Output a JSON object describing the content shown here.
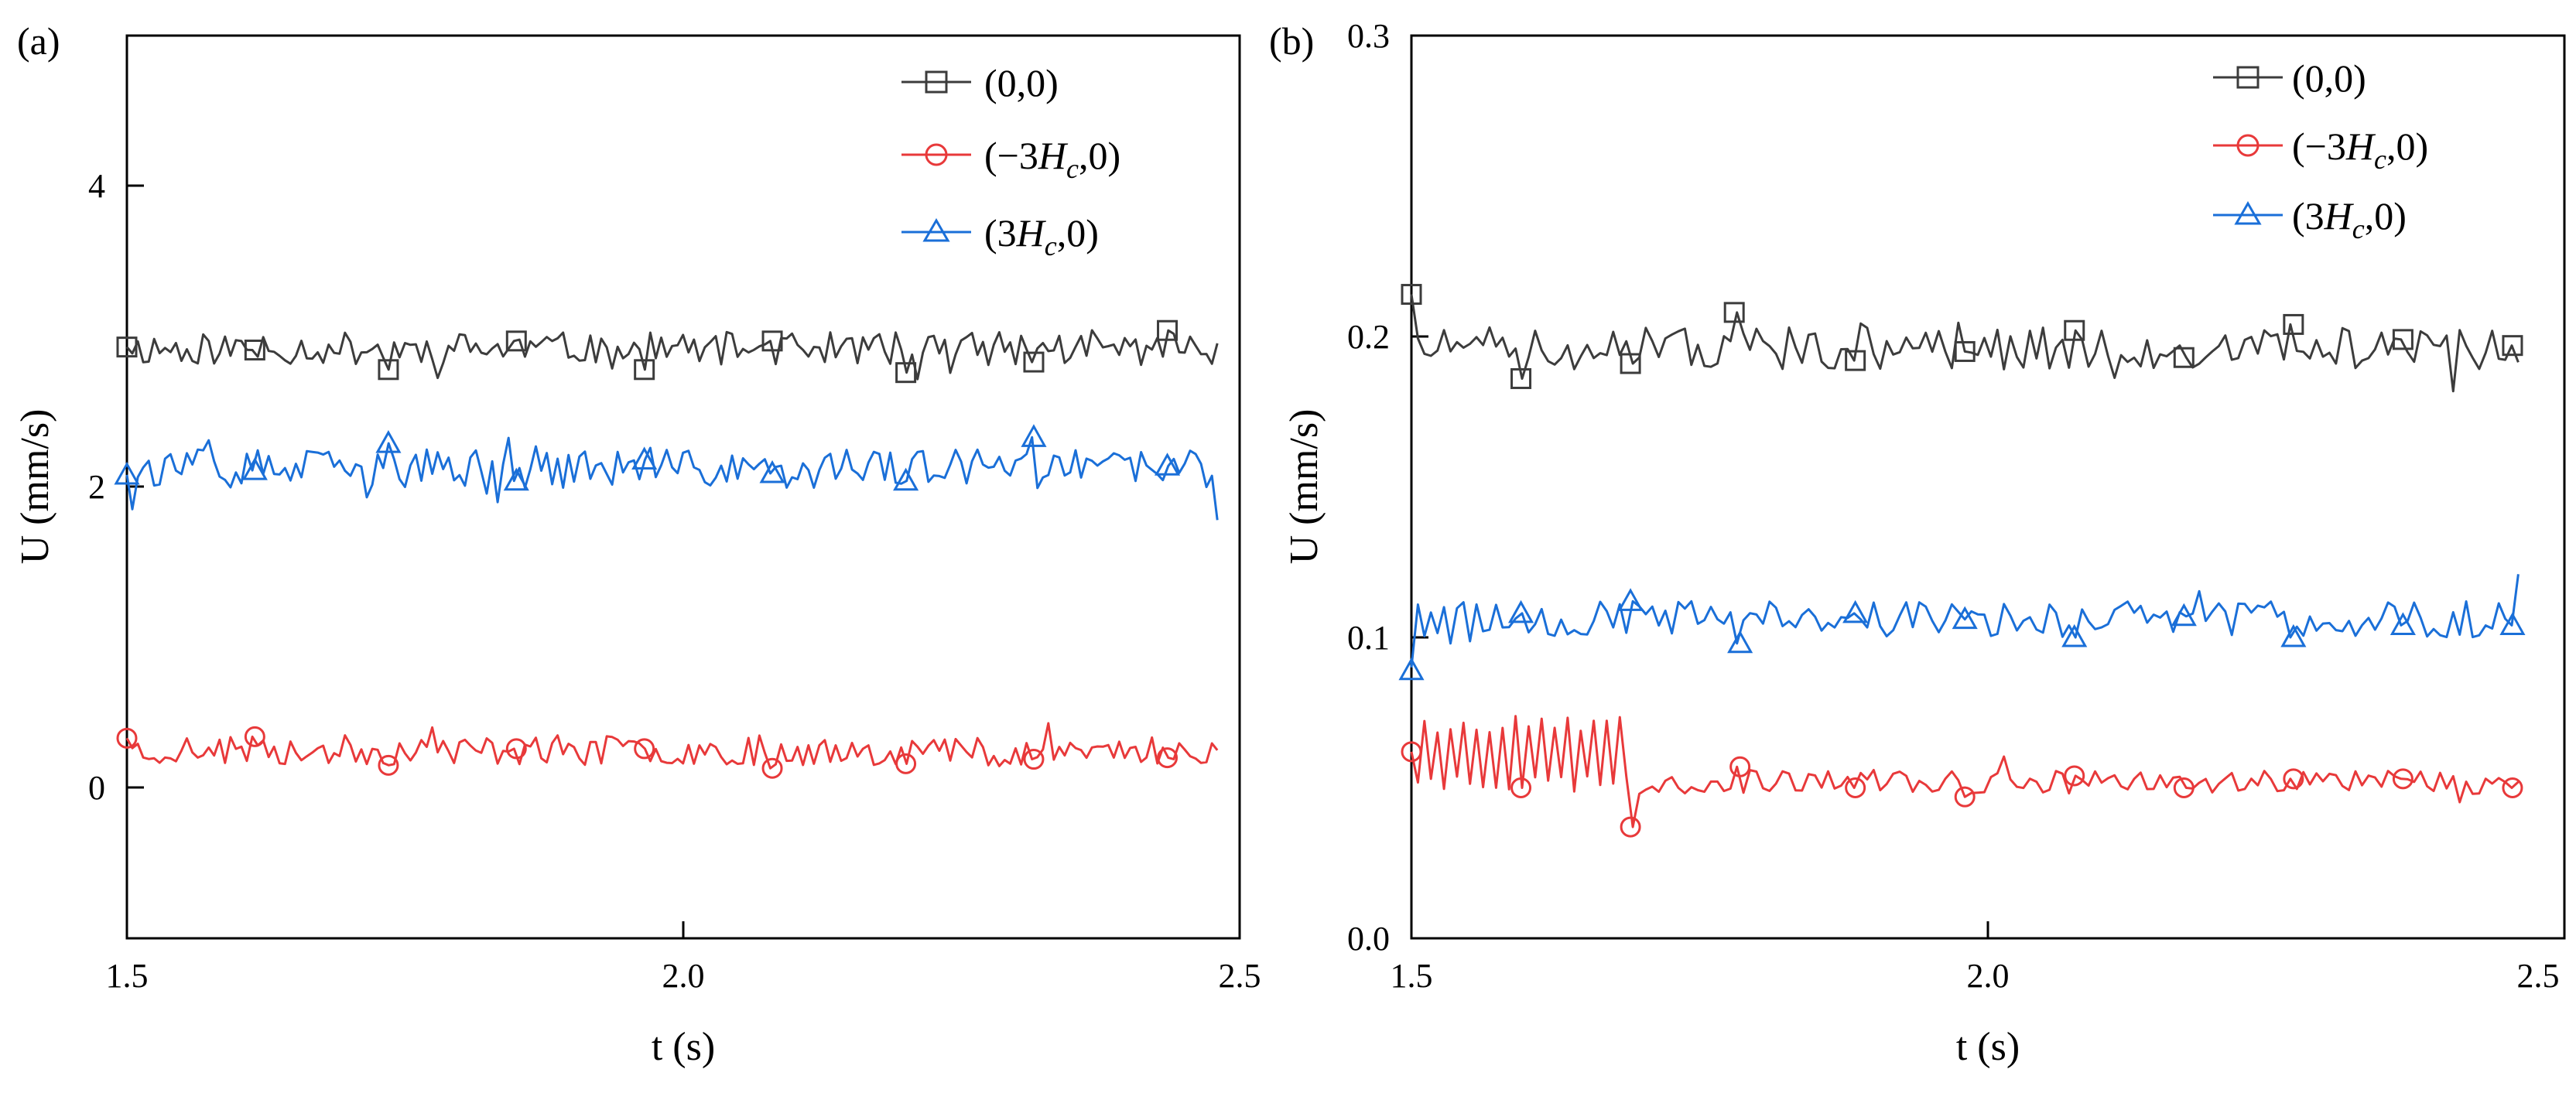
{
  "figure": {
    "panels": [
      "(a)",
      "(b)"
    ]
  },
  "chart_data": [
    {
      "panel": "(a)",
      "type": "line",
      "xlabel": "t (s)",
      "ylabel": "U (mm/s)",
      "xlim": [
        1.5,
        2.5
      ],
      "ylim": [
        -1,
        5
      ],
      "xticks": [
        1.5,
        2.0,
        2.5
      ],
      "xtick_labels": [
        "1.5",
        "2.0",
        "2.5"
      ],
      "yticks": [
        0,
        2,
        4
      ],
      "ytick_labels": [
        "0",
        "2",
        "4"
      ],
      "legend_position": "top-right",
      "series": [
        {
          "name": "(0,0)",
          "label_parts": [
            "(0,0)",
            "",
            "",
            ""
          ],
          "color": "#3c3c3c",
          "marker": "square",
          "mean": 2.92,
          "amplitude": 0.11,
          "seed": 11,
          "x_start": 1.5,
          "x_end": 2.48,
          "markers": [
            [
              1.5,
              2.93
            ],
            [
              1.615,
              2.91
            ],
            [
              1.735,
              2.78
            ],
            [
              1.85,
              2.97
            ],
            [
              1.965,
              2.78
            ],
            [
              2.08,
              2.97
            ],
            [
              2.2,
              2.76
            ],
            [
              2.315,
              2.83
            ],
            [
              2.435,
              3.04
            ]
          ]
        },
        {
          "name": "(-3Hc,0)",
          "label_parts": [
            "(−3",
            "H",
            "c",
            ",0)"
          ],
          "color": "#e8393a",
          "marker": "circle",
          "mean": 0.25,
          "amplitude": 0.1,
          "seed": 23,
          "x_start": 1.5,
          "x_end": 2.48,
          "markers": [
            [
              1.5,
              0.33
            ],
            [
              1.615,
              0.34
            ],
            [
              1.735,
              0.15
            ],
            [
              1.85,
              0.26
            ],
            [
              1.965,
              0.26
            ],
            [
              2.08,
              0.13
            ],
            [
              2.2,
              0.16
            ],
            [
              2.315,
              0.19
            ],
            [
              2.435,
              0.2
            ]
          ]
        },
        {
          "name": "(3Hc,0)",
          "label_parts": [
            "(3",
            "H",
            "c",
            ",0)"
          ],
          "color": "#1a6fd8",
          "marker": "triangle",
          "mean": 2.12,
          "amplitude": 0.13,
          "seed": 37,
          "x_start": 1.5,
          "x_end": 2.48,
          "end_value": 1.78,
          "markers": [
            [
              1.5,
              2.08
            ],
            [
              1.615,
              2.11
            ],
            [
              1.735,
              2.29
            ],
            [
              1.85,
              2.04
            ],
            [
              1.965,
              2.18
            ],
            [
              2.08,
              2.09
            ],
            [
              2.2,
              2.04
            ],
            [
              2.315,
              2.33
            ],
            [
              2.435,
              2.14
            ]
          ]
        }
      ]
    },
    {
      "panel": "(b)",
      "type": "line",
      "xlabel": "t (s)",
      "ylabel": "U (mm/s)",
      "xlim": [
        1.5,
        2.5
      ],
      "ylim": [
        0.0,
        0.3
      ],
      "xticks": [
        1.5,
        2.0,
        2.5
      ],
      "xtick_labels": [
        "1.5",
        "2.0",
        "2.5"
      ],
      "yticks": [
        0.0,
        0.1,
        0.2,
        0.3
      ],
      "ytick_labels": [
        "0.0",
        "0.1",
        "0.2",
        "0.3"
      ],
      "legend_position": "top-right",
      "series": [
        {
          "name": "(0,0)",
          "label_parts": [
            "(0,0)",
            "",
            "",
            ""
          ],
          "color": "#3c3c3c",
          "marker": "square",
          "mean": 0.196,
          "amplitude": 0.007,
          "seed": 51,
          "x_start": 1.5,
          "x_end": 2.46,
          "markers": [
            [
              1.5,
              0.214
            ],
            [
              1.595,
              0.186
            ],
            [
              1.69,
              0.191
            ],
            [
              1.78,
              0.208
            ],
            [
              1.885,
              0.192
            ],
            [
              1.98,
              0.195
            ],
            [
              2.075,
              0.202
            ],
            [
              2.17,
              0.193
            ],
            [
              2.265,
              0.204
            ],
            [
              2.36,
              0.199
            ],
            [
              2.455,
              0.197
            ]
          ]
        },
        {
          "name": "(-3Hc,0)",
          "label_parts": [
            "(−3",
            "H",
            "c",
            ",0)"
          ],
          "color": "#e8393a",
          "marker": "circle",
          "mean": 0.052,
          "amplitude": 0.004,
          "seed": 67,
          "x_start": 1.5,
          "x_end": 2.46,
          "oscillation": {
            "x_until": 1.69,
            "amplitude": 0.013,
            "center": 0.061
          },
          "markers": [
            [
              1.5,
              0.062
            ],
            [
              1.595,
              0.05
            ],
            [
              1.69,
              0.037
            ],
            [
              1.785,
              0.057
            ],
            [
              1.885,
              0.05
            ],
            [
              1.98,
              0.047
            ],
            [
              2.075,
              0.054
            ],
            [
              2.17,
              0.05
            ],
            [
              2.265,
              0.053
            ],
            [
              2.36,
              0.053
            ],
            [
              2.455,
              0.05
            ]
          ]
        },
        {
          "name": "(3Hc,0)",
          "label_parts": [
            "(3",
            "H",
            "c",
            ",0)"
          ],
          "color": "#1a6fd8",
          "marker": "triangle",
          "mean": 0.106,
          "amplitude": 0.006,
          "seed": 79,
          "x_start": 1.5,
          "x_end": 2.46,
          "start_value": 0.09,
          "end_value": 0.121,
          "markers": [
            [
              1.5,
              0.089
            ],
            [
              1.595,
              0.108
            ],
            [
              1.69,
              0.112
            ],
            [
              1.785,
              0.098
            ],
            [
              1.885,
              0.108
            ],
            [
              1.98,
              0.106
            ],
            [
              2.075,
              0.1
            ],
            [
              2.17,
              0.107
            ],
            [
              2.265,
              0.1
            ],
            [
              2.36,
              0.104
            ],
            [
              2.455,
              0.104
            ]
          ]
        }
      ]
    }
  ]
}
